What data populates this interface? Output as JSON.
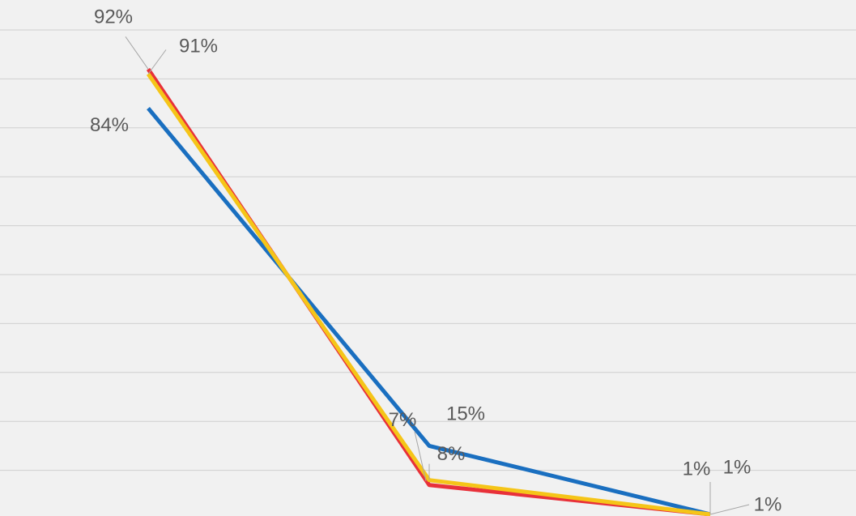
{
  "chart_data": {
    "type": "line",
    "categories": [
      null,
      null,
      null
    ],
    "series": [
      {
        "name": null,
        "color": "#1a6fc0",
        "values": [
          84,
          15,
          1
        ],
        "value_labels": [
          "84%",
          "15%",
          "1%"
        ]
      },
      {
        "name": null,
        "color": "#e8313a",
        "values": [
          92,
          7,
          1
        ],
        "value_labels": [
          "92%",
          "7%",
          "1%"
        ]
      },
      {
        "name": null,
        "color": "#f5c518",
        "values": [
          91,
          8,
          1
        ],
        "value_labels": [
          "91%",
          "8%",
          "1%"
        ]
      }
    ],
    "ylim": [
      0,
      100
    ],
    "yticks": [
      10,
      20,
      30,
      40,
      50,
      60,
      70,
      80,
      90,
      100
    ],
    "grid": true
  }
}
